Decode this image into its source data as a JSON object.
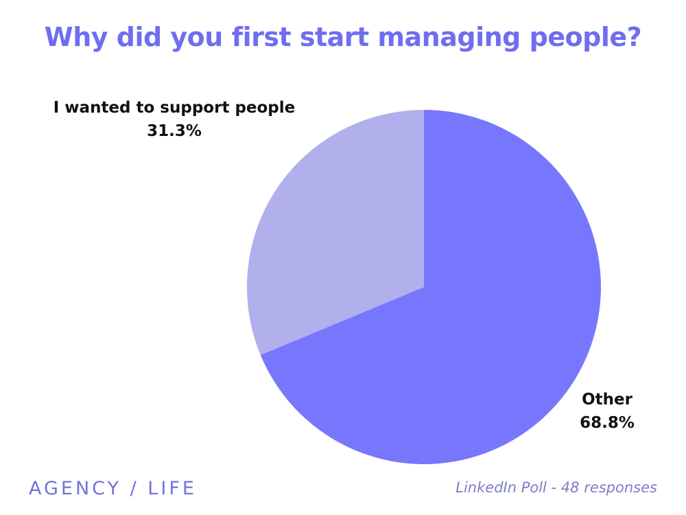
{
  "title": "Why did you first start managing people?",
  "colors": {
    "title": "#6e6ef0",
    "brand": "#7272d8",
    "source": "#7d7dc8"
  },
  "chart_data": {
    "type": "pie",
    "title": "Why did you first start managing people?",
    "slices": [
      {
        "label": "Other",
        "value": 68.8,
        "value_label": "68.8%",
        "color": "#7777fd"
      },
      {
        "label": "I wanted to support people",
        "value": 31.3,
        "value_label": "31.3%",
        "color": "#b1afec"
      }
    ],
    "start_angle_deg": 0,
    "direction": "clockwise",
    "legend": "none"
  },
  "footer": {
    "brand": "AGENCY / LIFE",
    "source": "LinkedIn Poll  - 48 responses"
  }
}
